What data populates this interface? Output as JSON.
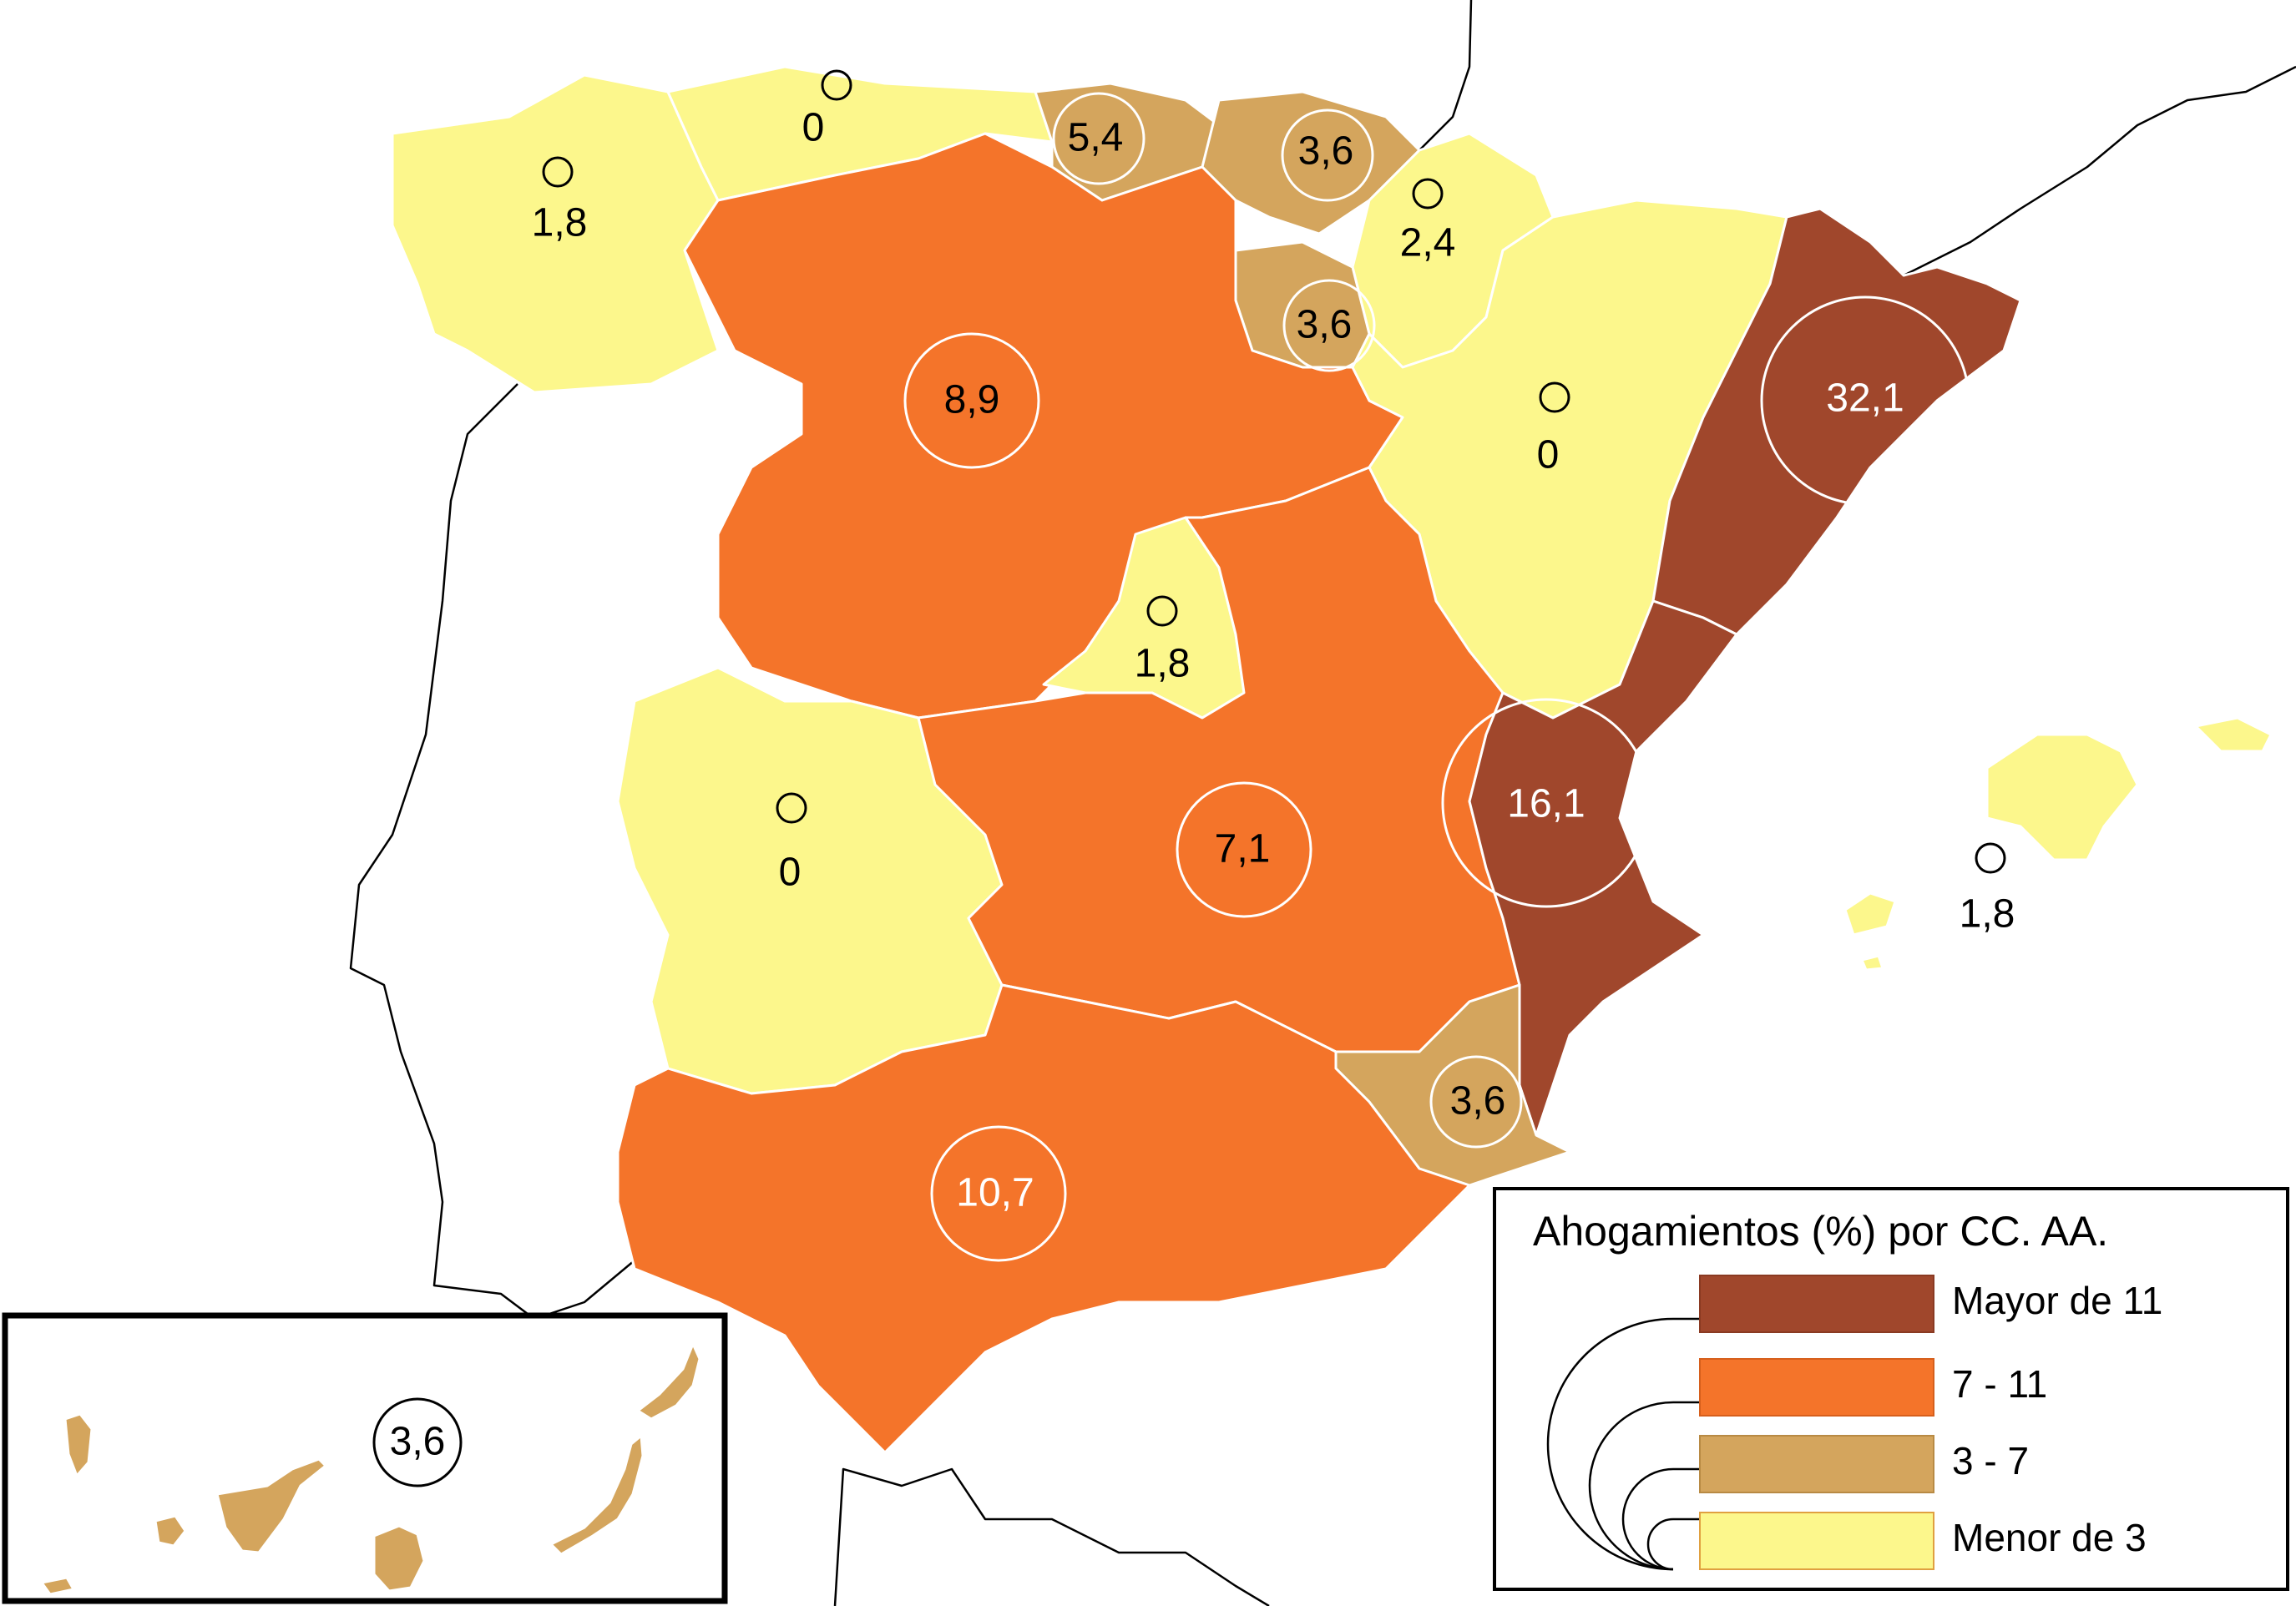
{
  "legend": {
    "title": "Ahogamientos (%) por CC. AA.",
    "classes": [
      {
        "label": "Mayor de 11",
        "color": "#a0472c"
      },
      {
        "label": "7 - 11",
        "color": "#f4742a"
      },
      {
        "label": "3 - 7",
        "color": "#d4a55d"
      },
      {
        "label": "Menor de 3",
        "color": "#fcf78c"
      }
    ]
  },
  "regions": [
    {
      "id": "galicia",
      "value": "1,8",
      "class": "Menor de 3"
    },
    {
      "id": "asturias",
      "value": "0",
      "class": "Menor de 3"
    },
    {
      "id": "cantabria",
      "value": "5,4",
      "class": "3 - 7"
    },
    {
      "id": "pais-vasco",
      "value": "3,6",
      "class": "3 - 7"
    },
    {
      "id": "navarra",
      "value": "2,4",
      "class": "Menor de 3"
    },
    {
      "id": "la-rioja",
      "value": "3,6",
      "class": "3 - 7"
    },
    {
      "id": "castilla-y-leon",
      "value": "8,9",
      "class": "7 - 11"
    },
    {
      "id": "aragon",
      "value": "0",
      "class": "Menor de 3"
    },
    {
      "id": "cataluna",
      "value": "32,1",
      "class": "Mayor de 11"
    },
    {
      "id": "madrid",
      "value": "1,8",
      "class": "Menor de 3"
    },
    {
      "id": "extremadura",
      "value": "0",
      "class": "Menor de 3"
    },
    {
      "id": "castilla-la-mancha",
      "value": "7,1",
      "class": "7 - 11"
    },
    {
      "id": "valencia",
      "value": "16,1",
      "class": "Mayor de 11"
    },
    {
      "id": "baleares",
      "value": "1,8",
      "class": "Menor de 3"
    },
    {
      "id": "murcia",
      "value": "3,6",
      "class": "3 - 7"
    },
    {
      "id": "andalucia",
      "value": "10,7",
      "class": "7 - 11"
    },
    {
      "id": "canarias",
      "value": "3,6",
      "class": "3 - 7"
    }
  ]
}
